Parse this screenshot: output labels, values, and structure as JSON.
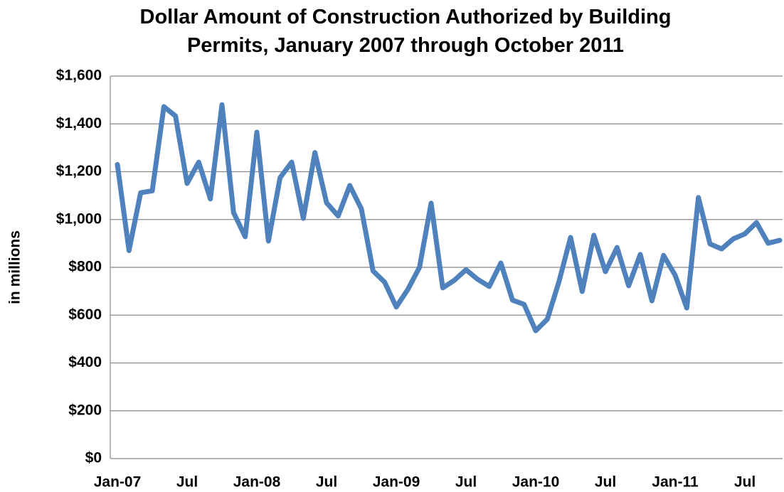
{
  "chart_data": {
    "type": "line",
    "title": "Dollar Amount of Construction Authorized by Building Permits, January 2007 through October 2011",
    "y_label": "in millions",
    "categories": [
      "Jan-07",
      null,
      null,
      null,
      null,
      null,
      "Jul",
      null,
      null,
      null,
      null,
      null,
      "Jan-08",
      null,
      null,
      null,
      null,
      null,
      "Jul",
      null,
      null,
      null,
      null,
      null,
      "Jan-09",
      null,
      null,
      null,
      null,
      null,
      "Jul",
      null,
      null,
      null,
      null,
      null,
      "Jan-10",
      null,
      null,
      null,
      null,
      null,
      "Jul",
      null,
      null,
      null,
      null,
      null,
      "Jan-11",
      null,
      null,
      null,
      null,
      null,
      "Jul",
      null,
      null,
      null
    ],
    "values": [
      1230,
      870,
      1112,
      1120,
      1472,
      1433,
      1151,
      1240,
      1086,
      1480,
      1029,
      928,
      1365,
      910,
      1175,
      1240,
      1005,
      1280,
      1070,
      1015,
      1142,
      1044,
      785,
      738,
      634,
      708,
      800,
      1068,
      714,
      746,
      790,
      750,
      720,
      818,
      663,
      645,
      535,
      583,
      740,
      925,
      699,
      934,
      782,
      883,
      723,
      854,
      660,
      850,
      767,
      630,
      1092,
      898,
      877,
      919,
      940,
      987,
      901,
      913
    ],
    "color": "#4f81bd",
    "ylim": [
      0,
      1600
    ],
    "yticks": [
      {
        "value": 0,
        "label": "$0"
      },
      {
        "value": 200,
        "label": "$200"
      },
      {
        "value": 400,
        "label": "$400"
      },
      {
        "value": 600,
        "label": "$600"
      },
      {
        "value": 800,
        "label": "$800"
      },
      {
        "value": 1000,
        "label": "$1,000"
      },
      {
        "value": 1200,
        "label": "$1,200"
      },
      {
        "value": 1400,
        "label": "$1,400"
      },
      {
        "value": 1600,
        "label": "$1,600"
      }
    ],
    "grid": true
  }
}
